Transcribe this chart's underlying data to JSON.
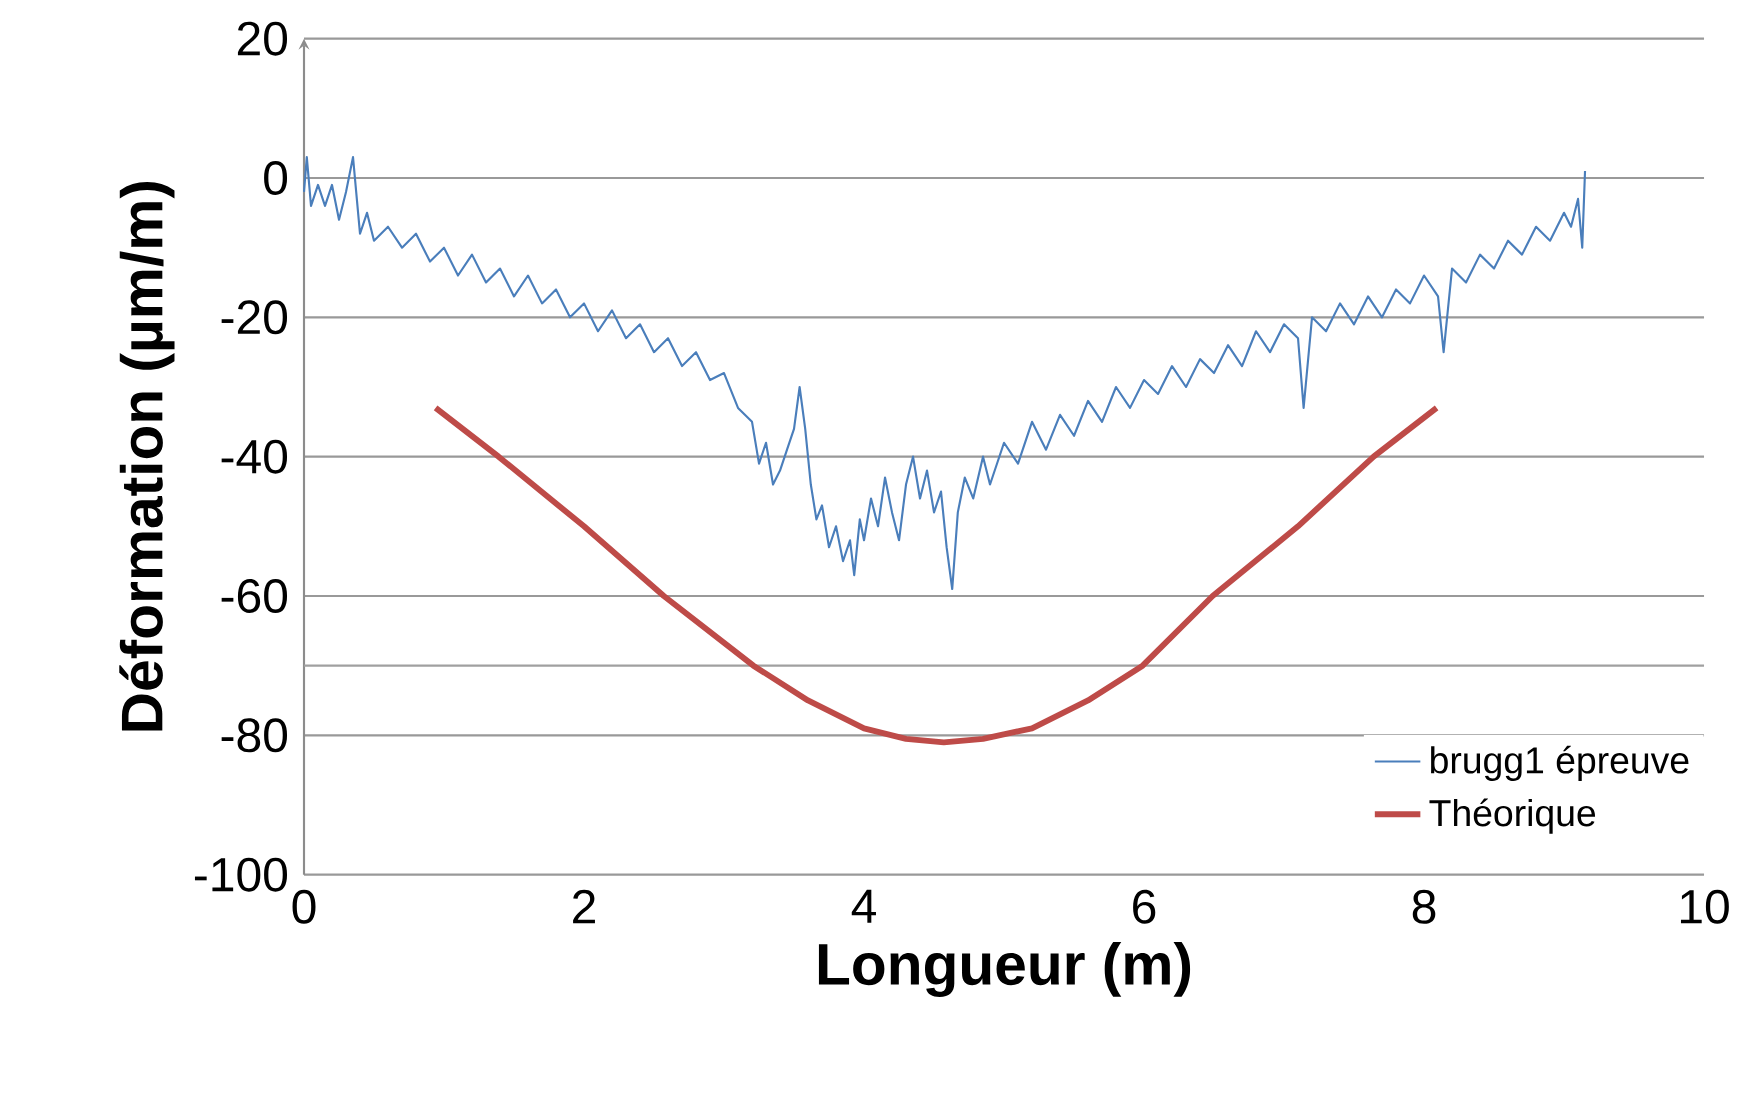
{
  "chart_data": {
    "type": "line",
    "xlabel": "Longueur (m)",
    "ylabel": "Déformation (µm/m)",
    "xlim": [
      0,
      10
    ],
    "xticks": [
      0,
      2,
      4,
      6,
      8,
      10
    ],
    "ylim": [
      -100,
      20
    ],
    "yticks": [
      -100,
      -80,
      -60,
      -40,
      -20,
      0,
      20
    ],
    "grid": "y",
    "legend": "bottom right",
    "ref_lines": [
      {
        "axis": "y",
        "value": -70,
        "color": "#a0a0a0"
      }
    ],
    "series": [
      {
        "name": "brugg1 épreuve",
        "color": "#4a7ebb",
        "x": [
          0,
          0.02,
          0.05,
          0.1,
          0.15,
          0.2,
          0.25,
          0.3,
          0.35,
          0.4,
          0.45,
          0.5,
          0.6,
          0.7,
          0.8,
          0.9,
          1.0,
          1.1,
          1.2,
          1.3,
          1.4,
          1.5,
          1.6,
          1.7,
          1.8,
          1.9,
          2.0,
          2.1,
          2.2,
          2.3,
          2.4,
          2.5,
          2.6,
          2.7,
          2.8,
          2.9,
          3.0,
          3.1,
          3.2,
          3.25,
          3.3,
          3.35,
          3.4,
          3.45,
          3.5,
          3.54,
          3.58,
          3.62,
          3.66,
          3.7,
          3.75,
          3.8,
          3.85,
          3.9,
          3.93,
          3.97,
          4.0,
          4.05,
          4.1,
          4.15,
          4.2,
          4.25,
          4.3,
          4.35,
          4.4,
          4.45,
          4.5,
          4.55,
          4.59,
          4.63,
          4.67,
          4.72,
          4.78,
          4.85,
          4.9,
          5.0,
          5.1,
          5.2,
          5.3,
          5.4,
          5.5,
          5.6,
          5.7,
          5.8,
          5.9,
          6.0,
          6.1,
          6.2,
          6.3,
          6.4,
          6.5,
          6.6,
          6.7,
          6.8,
          6.9,
          7.0,
          7.1,
          7.14,
          7.2,
          7.3,
          7.4,
          7.5,
          7.6,
          7.7,
          7.8,
          7.9,
          8.0,
          8.1,
          8.14,
          8.2,
          8.3,
          8.4,
          8.5,
          8.6,
          8.7,
          8.8,
          8.9,
          9.0,
          9.05,
          9.1,
          9.13,
          9.15
        ],
        "values": [
          -2,
          3,
          -4,
          -1,
          -4,
          -1,
          -6,
          -2,
          3,
          -8,
          -5,
          -9,
          -7,
          -10,
          -8,
          -12,
          -10,
          -14,
          -11,
          -15,
          -13,
          -17,
          -14,
          -18,
          -16,
          -20,
          -18,
          -22,
          -19,
          -23,
          -21,
          -25,
          -23,
          -27,
          -25,
          -29,
          -28,
          -33,
          -35,
          -41,
          -38,
          -44,
          -42,
          -39,
          -36,
          -30,
          -36,
          -44,
          -49,
          -47,
          -53,
          -50,
          -55,
          -52,
          -57,
          -49,
          -52,
          -46,
          -50,
          -43,
          -48,
          -52,
          -44,
          -40,
          -46,
          -42,
          -48,
          -45,
          -53,
          -59,
          -48,
          -43,
          -46,
          -40,
          -44,
          -38,
          -41,
          -35,
          -39,
          -34,
          -37,
          -32,
          -35,
          -30,
          -33,
          -29,
          -31,
          -27,
          -30,
          -26,
          -28,
          -24,
          -27,
          -22,
          -25,
          -21,
          -23,
          -33,
          -20,
          -22,
          -18,
          -21,
          -17,
          -20,
          -16,
          -18,
          -14,
          -17,
          -25,
          -13,
          -15,
          -11,
          -13,
          -9,
          -11,
          -7,
          -9,
          -5,
          -7,
          -3,
          -10,
          1
        ]
      },
      {
        "name": "Théorique",
        "color": "#be4b48",
        "x": [
          0.94,
          1.39,
          2.0,
          2.57,
          3.21,
          3.6,
          4.0,
          4.3,
          4.57,
          4.85,
          5.2,
          5.6,
          5.99,
          6.49,
          7.1,
          7.64,
          8.09
        ],
        "values": [
          -33,
          -40,
          -50,
          -60,
          -70,
          -75,
          -79,
          -80.5,
          -81,
          -80.5,
          -79,
          -75,
          -70,
          -60,
          -50,
          -40,
          -33
        ]
      }
    ]
  }
}
